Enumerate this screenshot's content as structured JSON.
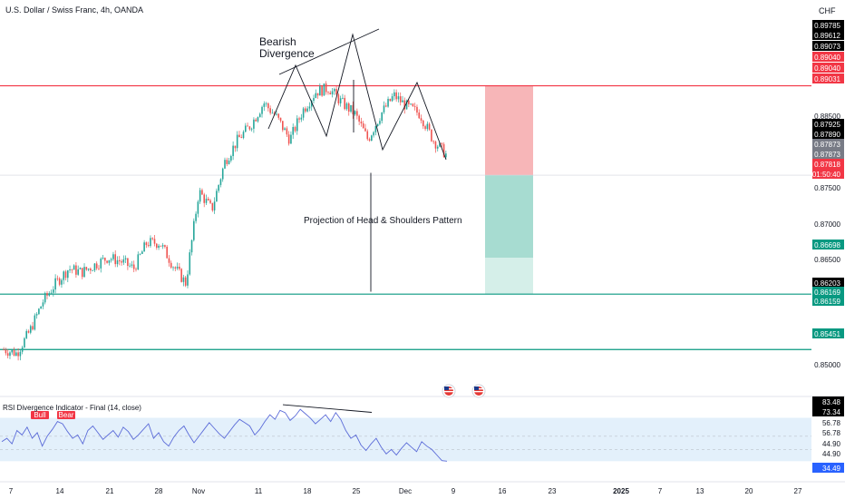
{
  "header": {
    "symbol_line": "U.S. Dollar / Swiss Franc, 4h, OANDA",
    "currency": "CHF"
  },
  "annotations": {
    "bearish_divergence": [
      "Bearish",
      "Divergence"
    ],
    "projection": "Projection of Head & Shoulders Pattern"
  },
  "rsi": {
    "title": "RSI Divergence Indicator - Final (14, close)",
    "bull_tag": "Bull",
    "bear_tag": "Bear"
  },
  "colors": {
    "up": "#26a69a",
    "down": "#ef5350",
    "red_line": "#f23645",
    "green_line": "#089981",
    "rsi_line": "#5b6bd8",
    "rsi_band": "#e3f0fb"
  },
  "price_axis": {
    "labels": [
      {
        "text": "0.89785",
        "bg": "#000000",
        "fg": "#ffffff"
      },
      {
        "text": "0.89612",
        "bg": "#000000",
        "fg": "#ffffff"
      },
      {
        "text": "0.89073",
        "bg": "#000000",
        "fg": "#ffffff"
      },
      {
        "text": "0.89040",
        "bg": "#f23645",
        "fg": "#ffffff"
      },
      {
        "text": "0.89040",
        "bg": "#f23645",
        "fg": "#ffffff"
      },
      {
        "text": "0.89031",
        "bg": "#f23645",
        "fg": "#ffffff"
      },
      {
        "text": "0.88500",
        "bg": "none",
        "fg": "#131722"
      },
      {
        "text": "0.87925",
        "bg": "#000000",
        "fg": "#ffffff"
      },
      {
        "text": "0.87890",
        "bg": "#000000",
        "fg": "#ffffff"
      },
      {
        "text": "0.87873",
        "bg": "#787b86",
        "fg": "#ffffff"
      },
      {
        "text": "0.87873",
        "bg": "#787b86",
        "fg": "#ffffff"
      },
      {
        "text": "0.87818",
        "bg": "#f23645",
        "fg": "#ffffff"
      },
      {
        "text": "01:50:40",
        "bg": "#f23645",
        "fg": "#ffffff"
      },
      {
        "text": "0.87500",
        "bg": "none",
        "fg": "#131722"
      },
      {
        "text": "0.87000",
        "bg": "none",
        "fg": "#131722"
      },
      {
        "text": "0.86698",
        "bg": "#089981",
        "fg": "#ffffff"
      },
      {
        "text": "0.86500",
        "bg": "none",
        "fg": "#131722"
      },
      {
        "text": "0.86203",
        "bg": "#000000",
        "fg": "#ffffff"
      },
      {
        "text": "0.86169",
        "bg": "#089981",
        "fg": "#ffffff"
      },
      {
        "text": "0.86159",
        "bg": "#089981",
        "fg": "#ffffff"
      },
      {
        "text": "0.85451",
        "bg": "#089981",
        "fg": "#ffffff"
      },
      {
        "text": "0.85000",
        "bg": "none",
        "fg": "#131722"
      }
    ]
  },
  "rsi_axis": {
    "labels": [
      {
        "text": "83.48",
        "bg": "#000000",
        "fg": "#ffffff"
      },
      {
        "text": "73.34",
        "bg": "#000000",
        "fg": "#ffffff"
      },
      {
        "text": "56.78",
        "bg": "none",
        "fg": "#131722"
      },
      {
        "text": "56.78",
        "bg": "none",
        "fg": "#131722"
      },
      {
        "text": "44.90",
        "bg": "none",
        "fg": "#131722"
      },
      {
        "text": "44.90",
        "bg": "none",
        "fg": "#131722"
      },
      {
        "text": "34.49",
        "bg": "#2962ff",
        "fg": "#ffffff"
      }
    ]
  },
  "time_axis": {
    "labels": [
      "7",
      "14",
      "21",
      "28",
      "Nov",
      "11",
      "18",
      "25",
      "Dec",
      "9",
      "16",
      "23",
      "2025",
      "7",
      "13",
      "20",
      "27"
    ],
    "bold": [
      "2025"
    ]
  },
  "chart_data": [
    {
      "type": "candlestick",
      "title": "U.S. Dollar / Swiss Franc, 4h, OANDA",
      "ylim": [
        0.849,
        0.899
      ],
      "hlines": [
        0.89031,
        0.86203,
        0.85451
      ],
      "trade_box": {
        "entry": 0.87818,
        "stop": 0.89031,
        "target_1": 0.86698,
        "target_2": 0.86203
      },
      "path": [
        [
          0.8545,
          0.861
        ],
        [
          0.854,
          0.86
        ],
        [
          0.857,
          0.86
        ],
        [
          0.861,
          0.8655
        ],
        [
          0.8635,
          0.866
        ],
        [
          0.8655,
          0.8675
        ],
        [
          0.865,
          0.867
        ],
        [
          0.866,
          0.87
        ],
        [
          0.867,
          0.8665
        ],
        [
          0.8665,
          0.865
        ],
        [
          0.8655,
          0.871
        ],
        [
          0.869,
          0.8695
        ],
        [
          0.869,
          0.866
        ],
        [
          0.866,
          0.865
        ],
        [
          0.8635,
          0.875
        ],
        [
          0.876,
          0.8775
        ],
        [
          0.8735,
          0.8775
        ],
        [
          0.88,
          0.8815
        ],
        [
          0.883,
          0.884
        ],
        [
          0.885,
          0.887
        ],
        [
          0.888,
          0.8898
        ],
        [
          0.886,
          0.884
        ],
        [
          0.883,
          0.885
        ],
        [
          0.887,
          0.8885
        ],
        [
          0.8895,
          0.893
        ],
        [
          0.89,
          0.887
        ],
        [
          0.888,
          0.8865
        ],
        [
          0.8865,
          0.884
        ],
        [
          0.883,
          0.885
        ],
        [
          0.8865,
          0.888
        ],
        [
          0.889,
          0.887
        ],
        [
          0.8875,
          0.886
        ],
        [
          0.8865,
          0.884
        ],
        [
          0.883,
          0.8815
        ],
        [
          0.881,
          0.8782
        ]
      ],
      "divergence_line": {
        "from": 0.8895,
        "to": 0.8955
      },
      "neckline_projection": {
        "top": 0.8785,
        "bottom": 0.862
      }
    },
    {
      "type": "line",
      "title": "RSI Divergence Indicator - Final (14, close)",
      "ylim": [
        25,
        90
      ],
      "band": [
        34.49,
        73.34
      ],
      "levels": [
        56.78,
        44.9
      ],
      "values": [
        52,
        55,
        50,
        62,
        58,
        65,
        55,
        60,
        48,
        57,
        63,
        70,
        68,
        61,
        55,
        58,
        50,
        62,
        66,
        60,
        54,
        58,
        62,
        56,
        65,
        61,
        54,
        58,
        63,
        68,
        55,
        60,
        52,
        48,
        56,
        62,
        66,
        58,
        51,
        57,
        63,
        69,
        64,
        59,
        55,
        61,
        67,
        72,
        69,
        66,
        58,
        63,
        70,
        76,
        72,
        80,
        78,
        71,
        75,
        81,
        77,
        73,
        68,
        72,
        76,
        70,
        78,
        72,
        62,
        55,
        58,
        49,
        44,
        50,
        55,
        47,
        41,
        45,
        40,
        46,
        51,
        47,
        43,
        52,
        48,
        45,
        40,
        35,
        34.49
      ],
      "divergence_line": {
        "from": 83.48,
        "to": 73.34
      }
    }
  ]
}
